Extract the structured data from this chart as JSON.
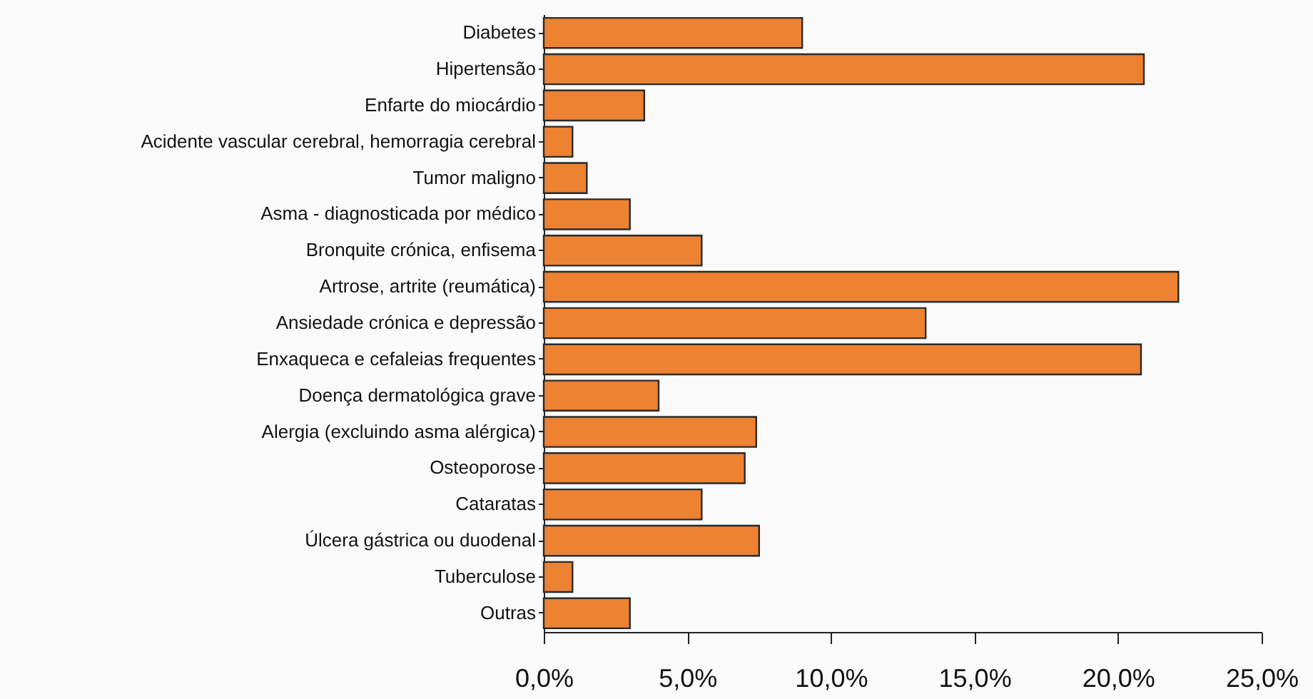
{
  "chart_data": {
    "type": "bar",
    "orientation": "horizontal",
    "categories": [
      "Diabetes",
      "Hipertensão",
      "Enfarte do miocárdio",
      "Acidente vascular cerebral, hemorragia cerebral",
      "Tumor maligno",
      "Asma - diagnosticada por médico",
      "Bronquite crónica, enfisema",
      "Artrose, artrite (reumática)",
      "Ansiedade crónica e depressão",
      "Enxaqueca e cefaleias frequentes",
      "Doença dermatológica grave",
      "Alergia (excluindo asma alérgica)",
      "Osteoporose",
      "Cataratas",
      "Úlcera gástrica ou duodenal",
      "Tuberculose",
      "Outras"
    ],
    "values": [
      9.0,
      20.9,
      3.5,
      1.0,
      1.5,
      3.0,
      5.5,
      22.1,
      13.3,
      20.8,
      4.0,
      7.4,
      7.0,
      5.5,
      7.5,
      1.0,
      3.0
    ],
    "color": "#ed8233",
    "xlim": [
      0,
      25
    ],
    "xticks": [
      {
        "value": 0,
        "label": "0,0%"
      },
      {
        "value": 5,
        "label": "5,0%"
      },
      {
        "value": 10,
        "label": "10,0%"
      },
      {
        "value": 15,
        "label": "15,0%"
      },
      {
        "value": 20,
        "label": "20,0%"
      },
      {
        "value": 25,
        "label": "25,0%"
      }
    ],
    "grid": false
  }
}
